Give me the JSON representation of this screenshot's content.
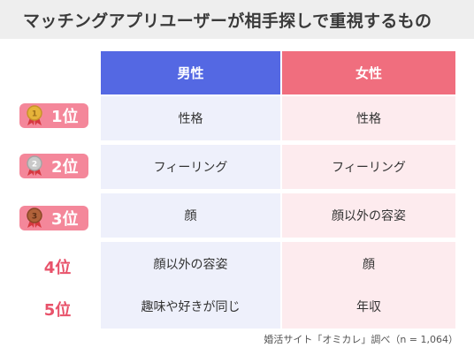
{
  "title": "マッチングアプリユーザーが相手探しで重視するもの",
  "columns": {
    "male": "男性",
    "female": "女性"
  },
  "rows": [
    {
      "rank": "1位",
      "medal_num": "1",
      "medal_color": "#e6b33a",
      "male": "性格",
      "female": "性格"
    },
    {
      "rank": "2位",
      "medal_num": "2",
      "medal_color": "#b9b9b9",
      "male": "フィーリング",
      "female": "フィーリング"
    },
    {
      "rank": "3位",
      "medal_num": "3",
      "medal_color": "#b0623a",
      "male": "顔",
      "female": "顔以外の容姿"
    },
    {
      "rank": "4位",
      "male": "顔以外の容姿",
      "female": "顔"
    },
    {
      "rank": "5位",
      "male": "趣味や好きが同じ",
      "female": "年収"
    }
  ],
  "footnote": "婚活サイト「オミカレ」調べ（n = 1,064）",
  "colors": {
    "male_header": "#5468e3",
    "female_header": "#f06e7e",
    "rank_accent": "#f4879a"
  }
}
